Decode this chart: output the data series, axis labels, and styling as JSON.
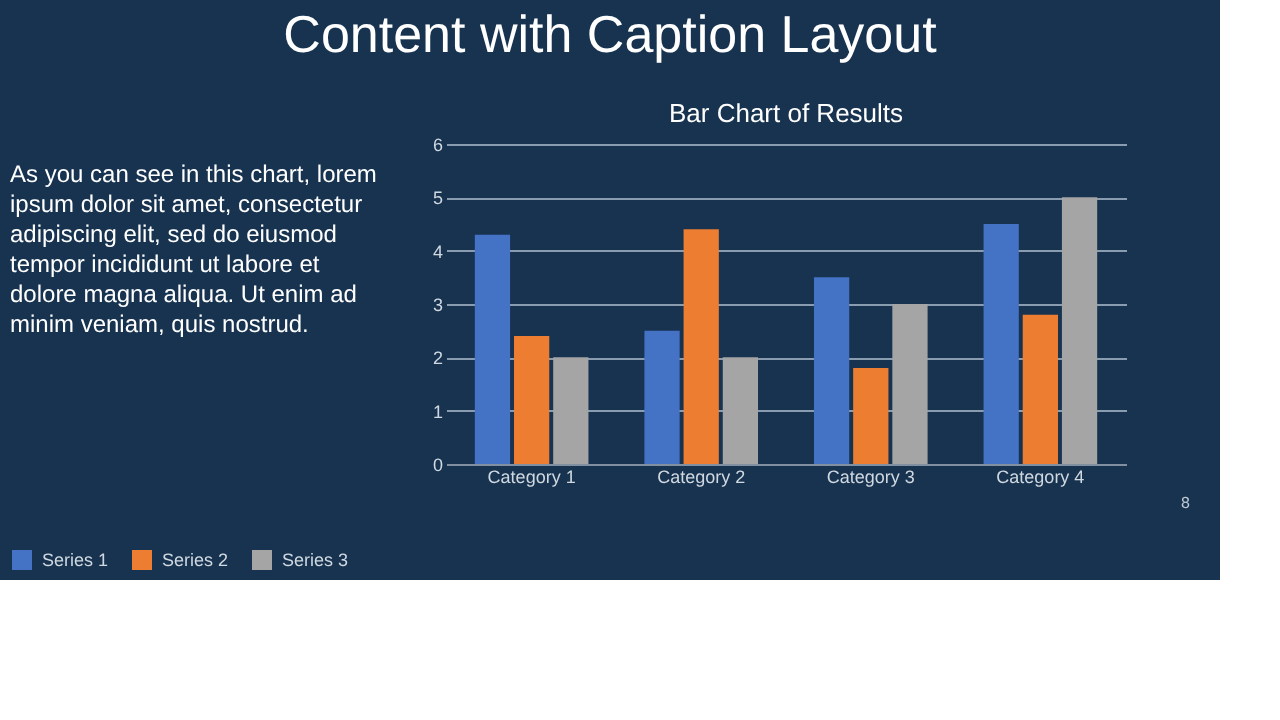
{
  "chart_data": {
    "type": "bar",
    "title": "Bar Chart of Results",
    "categories": [
      "Category 1",
      "Category 2",
      "Category 3",
      "Category 4"
    ],
    "series": [
      {
        "name": "Series 1",
        "color": "#4472c4",
        "values": [
          4.3,
          2.5,
          3.5,
          4.5
        ]
      },
      {
        "name": "Series 2",
        "color": "#ed7d31",
        "values": [
          2.4,
          4.4,
          1.8,
          2.8
        ]
      },
      {
        "name": "Series 3",
        "color": "#a5a5a5",
        "values": [
          2,
          2,
          3,
          5
        ]
      }
    ],
    "ylim": [
      0,
      6
    ],
    "yticks": [
      0,
      1,
      2,
      3,
      4,
      5,
      6
    ],
    "grid": "y",
    "legend": "bottom",
    "annotations": [
      "Content with Caption Layout",
      "As you can see in this chart, lorem ipsum dolor sit amet, consectetur adipiscing elit, sed do eiusmod tempor incididunt ut labore et dolore magna aliqua. Ut enim ad minim veniam, quis nostrud.",
      "8"
    ]
  }
}
